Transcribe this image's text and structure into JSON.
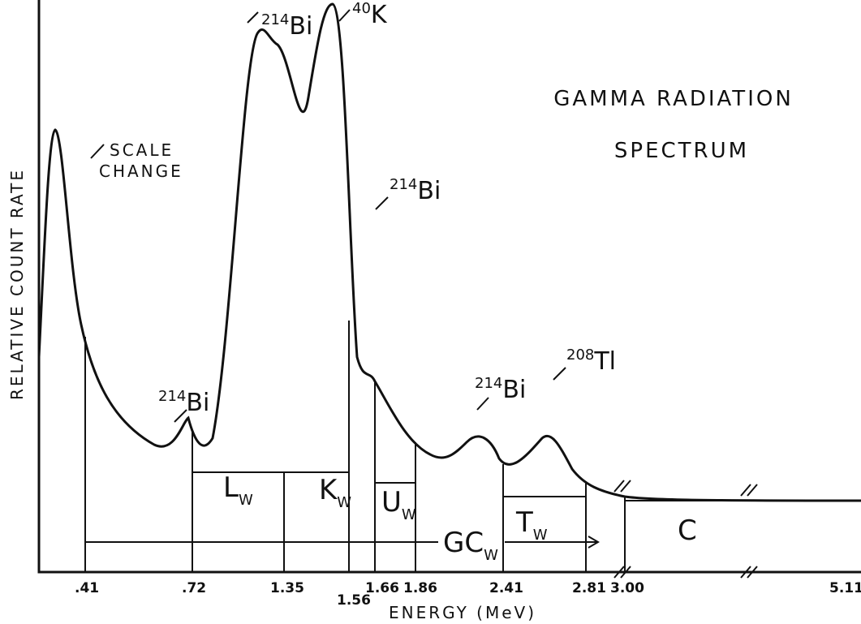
{
  "title": [
    "GAMMA RADIATION",
    "SPECTRUM"
  ],
  "y_axis_label": "RELATIVE COUNT RATE",
  "x_axis_label": "ENERGY (MeV)",
  "scale_change": [
    "SCALE",
    "CHANGE"
  ],
  "peaks": [
    {
      "mass": "214",
      "element": "Bi"
    },
    {
      "mass": "40",
      "element": "K"
    },
    {
      "mass": "214",
      "element": "Bi"
    },
    {
      "mass": "214",
      "element": "Bi"
    },
    {
      "mass": "214",
      "element": "Bi"
    },
    {
      "mass": "208",
      "element": "Tl"
    }
  ],
  "windows": [
    {
      "letter": "L",
      "sub": "W"
    },
    {
      "letter": "K",
      "sub": "W"
    },
    {
      "letter": "U",
      "sub": "W"
    },
    {
      "letter": "T",
      "sub": "W"
    },
    {
      "letter": "C",
      "sub": ""
    },
    {
      "letter": "GC",
      "sub": "W"
    }
  ],
  "x_ticks": [
    ".41",
    ".72",
    "1.35",
    "1.56",
    "1.66",
    "1.86",
    "2.41",
    "2.81",
    "3.00",
    "5.11"
  ]
}
